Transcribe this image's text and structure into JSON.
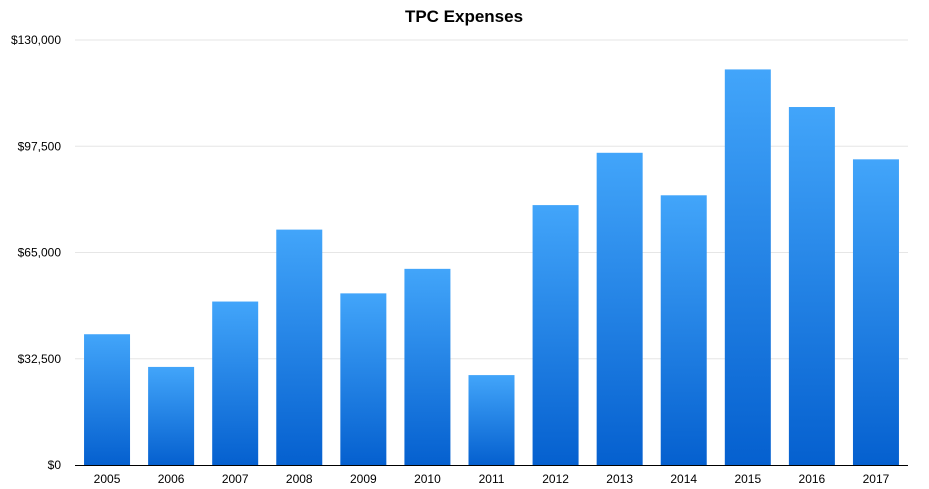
{
  "chart_data": {
    "type": "bar",
    "title": "TPC Expenses",
    "xlabel": "",
    "ylabel": "",
    "categories": [
      "2005",
      "2006",
      "2007",
      "2008",
      "2009",
      "2010",
      "2011",
      "2012",
      "2013",
      "2014",
      "2015",
      "2016",
      "2017"
    ],
    "values": [
      40000,
      30000,
      50000,
      72000,
      52500,
      60000,
      27500,
      79500,
      95500,
      82500,
      121000,
      109500,
      93500
    ],
    "ylim": [
      0,
      130000
    ],
    "yticks": [
      0,
      32500,
      65000,
      97500,
      130000
    ],
    "ytick_labels": [
      "$0",
      "$32,500",
      "$65,000",
      "$97,500",
      "$130,000"
    ],
    "grid": true,
    "legend": "none",
    "colors": {
      "bar_top": "#42a5fa",
      "bar_bottom": "#0560cf"
    }
  }
}
